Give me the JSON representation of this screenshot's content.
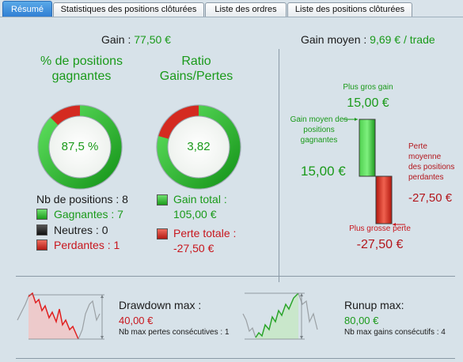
{
  "tabs": [
    {
      "label": "Résumé",
      "active": true
    },
    {
      "label": "Statistiques des positions clôturées",
      "active": false
    },
    {
      "label": "Liste des ordres",
      "active": false
    },
    {
      "label": "Liste des positions clôturées",
      "active": false
    }
  ],
  "gain": {
    "label": "Gain : ",
    "value": "77,50 €"
  },
  "win_pct": {
    "title": "% de positions gagnantes",
    "value_text": "87,5 %",
    "fraction": 0.875
  },
  "ratio": {
    "title": "Ratio Gains/Pertes",
    "value_text": "3,82",
    "fraction": 0.7925
  },
  "positions": {
    "count_label": "Nb de positions : 8",
    "winners": "Gagnantes : 7",
    "neutral": "Neutres : 0",
    "losers": "Perdantes : 1"
  },
  "totals": {
    "gain_label": "Gain total :",
    "gain_value": "105,00 €",
    "loss_label": "Perte totale :",
    "loss_value": "-27,50 €"
  },
  "avg_gain": {
    "label": "Gain moyen : ",
    "value": "9,69 € / trade"
  },
  "barchart": {
    "max_gain_label": "Plus gros gain",
    "max_gain_value": "15,00 €",
    "avg_win_label": "Gain moyen des positions gagnantes",
    "avg_win_value": "15,00 €",
    "avg_loss_label": "Perte moyenne des positions perdantes",
    "avg_loss_value": "-27,50 €",
    "max_loss_label": "Plus grosse perte",
    "max_loss_value": "-27,50 €",
    "gain_amount": 15,
    "loss_amount": -27.5
  },
  "drawdown": {
    "title": "Drawdown max :",
    "value": "40,00 €",
    "sub": "Nb max pertes consécutives : 1"
  },
  "runup": {
    "title": "Runup max:",
    "value": "80,00 €",
    "sub": "Nb max gains consécutifs : 4"
  },
  "colors": {
    "green": "#1a9a1a",
    "red": "#c8161d",
    "tab_active": "#2e7dd2",
    "background": "#d7e2e9"
  }
}
